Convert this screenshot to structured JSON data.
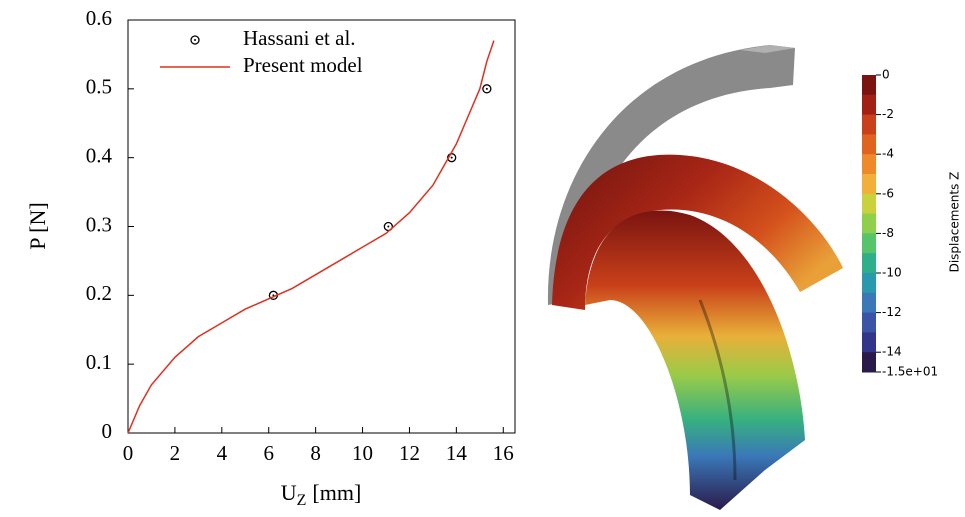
{
  "chart_data": {
    "type": "line",
    "ylabel": "P [N]",
    "xlabel": [
      "U",
      "Z",
      "[mm]"
    ],
    "xlim": [
      0,
      16.5
    ],
    "ylim": [
      0,
      0.6
    ],
    "xticks": [
      0,
      2,
      4,
      6,
      8,
      10,
      12,
      14,
      16
    ],
    "yticks": [
      0,
      0.1,
      0.2,
      0.3,
      0.4,
      0.5,
      0.6
    ],
    "series": [
      {
        "name": "Hassani et al.",
        "kind": "scatter",
        "color": "#000000",
        "x": [
          6.2,
          11.1,
          13.8,
          15.3
        ],
        "values": [
          0.2,
          0.3,
          0.4,
          0.5
        ]
      },
      {
        "name": "Present model",
        "kind": "line",
        "color": "#e0301e",
        "x": [
          0,
          0.5,
          1,
          2,
          3,
          4,
          5,
          6,
          7,
          8,
          9,
          10,
          11,
          12,
          13,
          14,
          14.5,
          15,
          15.3,
          15.6
        ],
        "values": [
          0,
          0.04,
          0.07,
          0.11,
          0.14,
          0.16,
          0.18,
          0.195,
          0.21,
          0.23,
          0.25,
          0.27,
          0.29,
          0.32,
          0.36,
          0.42,
          0.46,
          0.5,
          0.54,
          0.57
        ]
      }
    ],
    "colorbar": {
      "title": "Displacements Z",
      "lim": [
        -15,
        0
      ],
      "ticks": [
        0,
        -2,
        -4,
        -6,
        -8,
        -10,
        -12,
        -14,
        {
          "value": -15,
          "label": "-1.5e+01"
        }
      ],
      "colors": [
        "#7a1410",
        "#a32114",
        "#c9401a",
        "#e0641f",
        "#ee8a2a",
        "#f2b03a",
        "#c9d23c",
        "#8fcf4c",
        "#55c46a",
        "#2fae8a",
        "#2a98ad",
        "#3a78b8",
        "#3c54a8",
        "#33358a",
        "#2a1a4a"
      ]
    }
  }
}
